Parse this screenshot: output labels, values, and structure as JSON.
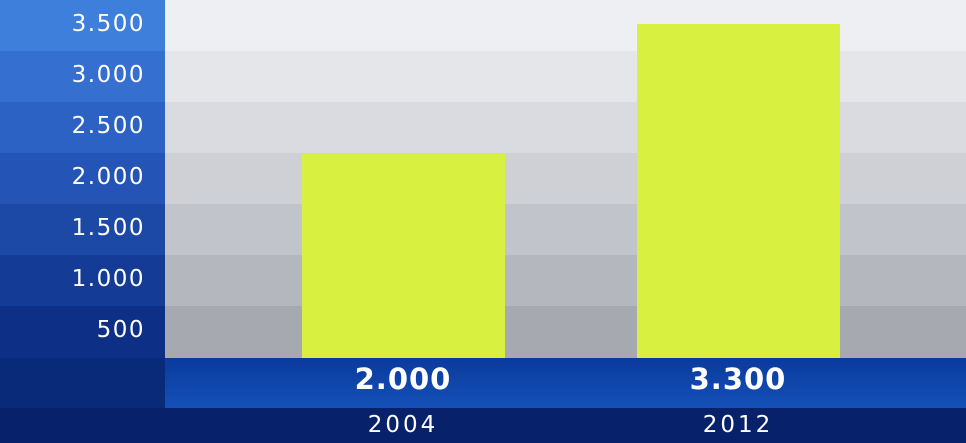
{
  "chart_data": {
    "type": "bar",
    "categories": [
      "2004",
      "2012"
    ],
    "values": [
      2000,
      3300
    ],
    "value_labels": [
      "2.000",
      "3.300"
    ],
    "yticks": [
      "3.500",
      "3.000",
      "2.500",
      "2.000",
      "1.500",
      "1.000",
      "500"
    ],
    "ylim": [
      0,
      3500
    ],
    "grid": true,
    "colors": {
      "bar": "#d8f040",
      "axis_band_top": "#3a78d8",
      "axis_band_bottom": "#0a2a86",
      "label_band": "#1550b8",
      "category_band": "#07216a"
    }
  }
}
